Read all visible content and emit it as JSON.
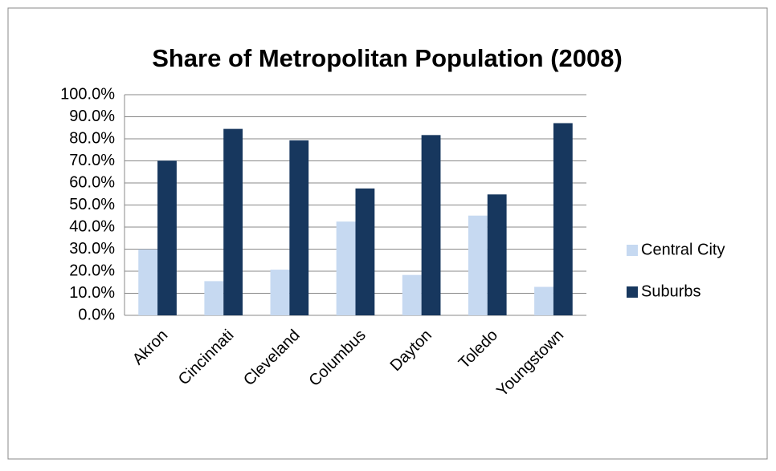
{
  "chart_data": {
    "type": "bar",
    "title": "Share of Metropolitan Population (2008)",
    "categories": [
      "Akron",
      "Cincinnati",
      "Cleveland",
      "Columbus",
      "Dayton",
      "Toledo",
      "Youngstown"
    ],
    "series": [
      {
        "name": "Central City",
        "color": "#c6d9f1",
        "values": [
          29.9,
          15.5,
          20.7,
          42.5,
          18.3,
          45.2,
          12.9
        ]
      },
      {
        "name": "Suburbs",
        "color": "#17375e",
        "values": [
          70.1,
          84.5,
          79.3,
          57.5,
          81.7,
          54.8,
          87.1
        ]
      }
    ],
    "ylim": [
      0,
      100
    ],
    "yticks": [
      {
        "value": 0,
        "label": "0.0%"
      },
      {
        "value": 10,
        "label": "10.0%"
      },
      {
        "value": 20,
        "label": "20.0%"
      },
      {
        "value": 30,
        "label": "30.0%"
      },
      {
        "value": 40,
        "label": "40.0%"
      },
      {
        "value": 50,
        "label": "50.0%"
      },
      {
        "value": 60,
        "label": "60.0%"
      },
      {
        "value": 70,
        "label": "70.0%"
      },
      {
        "value": 80,
        "label": "80.0%"
      },
      {
        "value": 90,
        "label": "90.0%"
      },
      {
        "value": 100,
        "label": "100.0%"
      }
    ],
    "grid": true,
    "legend": "right"
  }
}
